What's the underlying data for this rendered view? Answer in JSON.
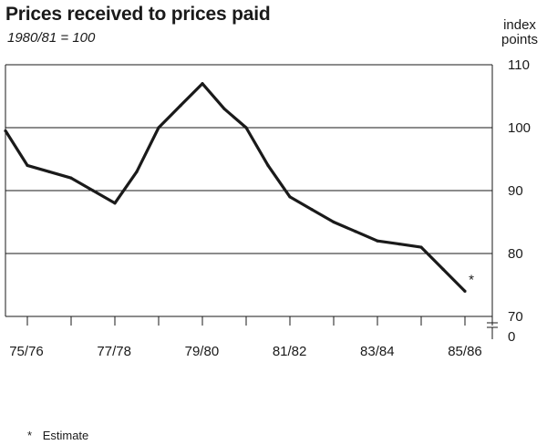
{
  "title": "Prices received to prices paid",
  "subtitle": "1980/81 = 100",
  "axis_unit_line1": "index",
  "axis_unit_line2": "points",
  "footnote": {
    "symbol": "*",
    "text": "Estimate"
  },
  "colors": {
    "line": "#1a1a1a",
    "grid": "#1a1a1a",
    "background": "#ffffff"
  },
  "chart_data": {
    "type": "line",
    "title": "Prices received to prices paid",
    "subtitle": "1980/81 = 100",
    "xlabel": "",
    "ylabel": "index points",
    "ylim": [
      70,
      110
    ],
    "yticks": [
      70,
      80,
      90,
      100,
      110
    ],
    "y_axis_labels": [
      "0",
      "70",
      "80",
      "90",
      "100",
      "110"
    ],
    "y_axis_break": true,
    "grid": true,
    "x_tick_labels": [
      "75/76",
      "77/78",
      "79/80",
      "81/82",
      "83/84",
      "85/86"
    ],
    "x": [
      1975.0,
      1975.5,
      1976.0,
      1976.5,
      1977.0,
      1977.5,
      1978.0,
      1978.5,
      1979.0,
      1979.5,
      1980.0,
      1980.5,
      1981.0,
      1981.5,
      1982.0,
      1982.5,
      1983.0,
      1983.5,
      1984.0,
      1984.5,
      1985.0,
      1985.5
    ],
    "series": [
      {
        "values": [
          99.5,
          94,
          93,
          92,
          90,
          88,
          93,
          100,
          103.5,
          107,
          103,
          100,
          94,
          89,
          87,
          85,
          83.5,
          82,
          81.5,
          81,
          77.5,
          74
        ],
        "estimate_marker": "*"
      }
    ]
  }
}
